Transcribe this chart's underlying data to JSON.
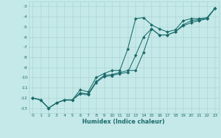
{
  "xlabel": "Humidex (Indice chaleur)",
  "bg_color": "#c5e8e8",
  "grid_color": "#aad4d4",
  "line_color": "#1a6b6b",
  "xlim": [
    -0.5,
    23.5
  ],
  "ylim": [
    -13.5,
    -2.5
  ],
  "yticks": [
    -13,
    -12,
    -11,
    -10,
    -9,
    -8,
    -7,
    -6,
    -5,
    -4,
    -3
  ],
  "xticks": [
    0,
    1,
    2,
    3,
    4,
    5,
    6,
    7,
    8,
    9,
    10,
    11,
    12,
    13,
    14,
    15,
    16,
    17,
    18,
    19,
    20,
    21,
    22,
    23
  ],
  "series1_x": [
    0,
    1,
    2,
    3,
    4,
    5,
    6,
    7,
    8,
    9,
    10,
    11,
    12,
    13,
    14,
    15,
    16,
    17,
    18,
    19,
    20,
    21,
    22,
    23
  ],
  "series1_y": [
    -12.0,
    -12.2,
    -13.0,
    -12.5,
    -12.2,
    -12.2,
    -11.2,
    -11.4,
    -10.0,
    -9.6,
    -9.3,
    -9.3,
    -7.2,
    -4.2,
    -4.1,
    -4.8,
    -5.2,
    -5.5,
    -5.3,
    -4.4,
    -4.2,
    -4.2,
    -4.1,
    -3.2
  ],
  "series2_x": [
    0,
    1,
    2,
    3,
    4,
    5,
    6,
    7,
    8,
    9,
    10,
    11,
    12,
    13,
    14,
    15,
    16,
    17,
    18,
    19,
    20,
    21,
    22,
    23
  ],
  "series2_y": [
    -12.0,
    -12.2,
    -13.0,
    -12.5,
    -12.2,
    -12.2,
    -11.5,
    -11.6,
    -10.4,
    -9.8,
    -9.7,
    -9.5,
    -9.3,
    -9.3,
    -7.5,
    -5.2,
    -5.8,
    -5.8,
    -5.5,
    -4.8,
    -4.4,
    -4.3,
    -4.2,
    -3.2
  ],
  "series3_x": [
    0,
    1,
    2,
    3,
    4,
    5,
    6,
    7,
    8,
    9,
    10,
    11,
    12,
    13,
    14,
    15,
    16,
    17,
    18,
    19,
    20,
    21,
    22,
    23
  ],
  "series3_y": [
    -12.0,
    -12.2,
    -13.0,
    -12.5,
    -12.2,
    -12.2,
    -11.6,
    -11.7,
    -10.5,
    -9.9,
    -9.8,
    -9.6,
    -9.5,
    -7.8,
    -6.0,
    -5.2,
    -5.8,
    -5.8,
    -5.5,
    -4.9,
    -4.6,
    -4.4,
    -4.2,
    -3.2
  ]
}
